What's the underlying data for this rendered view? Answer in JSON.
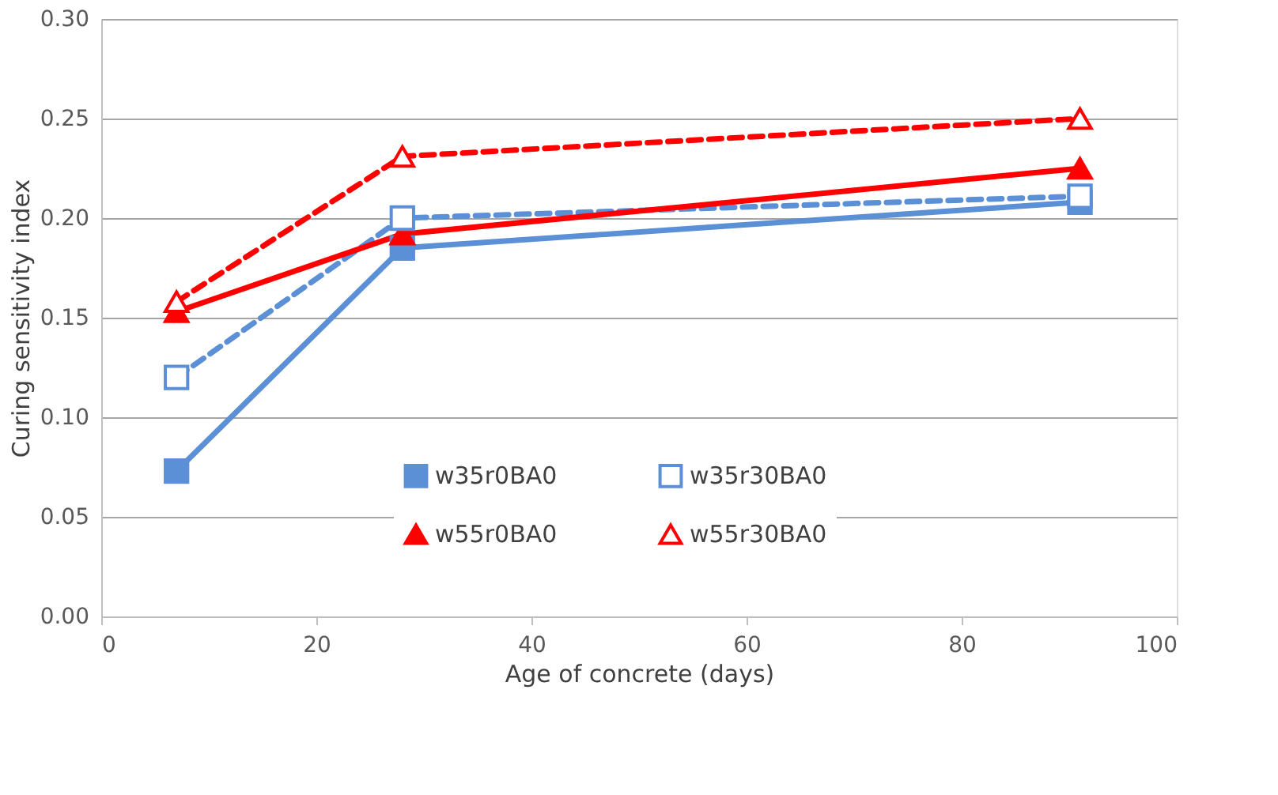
{
  "chart_data": {
    "type": "line",
    "xlabel": "Age of concrete (days)",
    "ylabel": "Curing sensitivity index",
    "x": [
      7,
      28,
      91
    ],
    "xlim": [
      0,
      100
    ],
    "xticks": [
      0,
      20,
      40,
      60,
      80,
      100
    ],
    "ylim": [
      0,
      0.3
    ],
    "yticks": [
      {
        "value": 0,
        "label": "0.00"
      },
      {
        "value": 0.05,
        "label": "0.05"
      },
      {
        "value": 0.1,
        "label": "0.10"
      },
      {
        "value": 0.15,
        "label": "0.15"
      },
      {
        "value": 0.2,
        "label": "0.20"
      },
      {
        "value": 0.25,
        "label": "0.25"
      },
      {
        "value": 0.3,
        "label": "0.30"
      }
    ],
    "grid": "y",
    "legend": "bottom right",
    "series": [
      {
        "name": "w35r0BA0",
        "color": "#5b8fd6",
        "marker": "square",
        "line_style": "solid",
        "values": [
          0.073,
          0.185,
          0.208
        ]
      },
      {
        "name": "w35r30BA0",
        "color": "#5b8fd6",
        "marker": "square",
        "line_style": "dashed",
        "values": [
          0.12,
          0.2,
          0.211
        ]
      },
      {
        "name": "w55r0BA0",
        "color": "#ff0000",
        "marker": "triangle",
        "line_style": "solid",
        "values": [
          0.153,
          0.192,
          0.225
        ]
      },
      {
        "name": "w55r30BA0",
        "color": "#ff0000",
        "marker": "triangle",
        "line_style": "dashed",
        "values": [
          0.158,
          0.231,
          0.25
        ]
      }
    ]
  }
}
